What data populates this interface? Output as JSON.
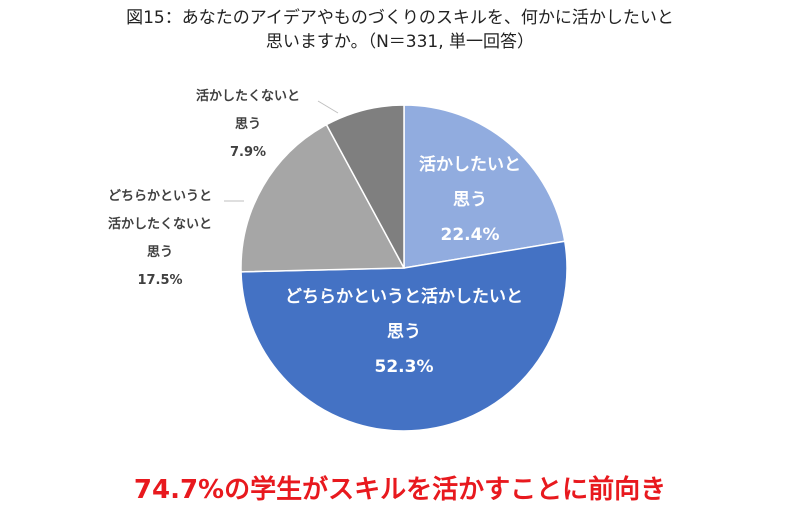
{
  "title_lines": [
    "図15：あなたのアイデアやものづくりのスキルを、何かに活かしたいと",
    "思いますか。（N＝331, 単一回答）"
  ],
  "chart_data": {
    "type": "pie",
    "title": "図15：あなたのアイデアやものづくりのスキルを、何かに活かしたいと思いますか。（N＝331, 単一回答）",
    "unit": "%",
    "start": "12 o'clock",
    "direction": "clockwise",
    "slices": [
      {
        "label_lines": [
          "活かしたいと",
          "思う"
        ],
        "value": 22.4,
        "value_label": "22.4%",
        "color": "#91acdf",
        "label_color": "#ffffff",
        "label_position": "inside"
      },
      {
        "label_lines": [
          "どちらかというと活かしたいと",
          "思う"
        ],
        "value": 52.3,
        "value_label": "52.3%",
        "color": "#4472c4",
        "label_color": "#ffffff",
        "label_position": "inside"
      },
      {
        "label_lines": [
          "どちらかというと",
          "活かしたくないと",
          "思う"
        ],
        "value": 17.5,
        "value_label": "17.5%",
        "color": "#a6a6a6",
        "label_color": "#404040",
        "label_position": "outside"
      },
      {
        "label_lines": [
          "活かしたくないと",
          "思う"
        ],
        "value": 7.9,
        "value_label": "7.9%",
        "color": "#7f7f7f",
        "label_color": "#404040",
        "label_position": "outside"
      }
    ]
  },
  "footer": "74.7%の学生がスキルを活かすことに前向き"
}
